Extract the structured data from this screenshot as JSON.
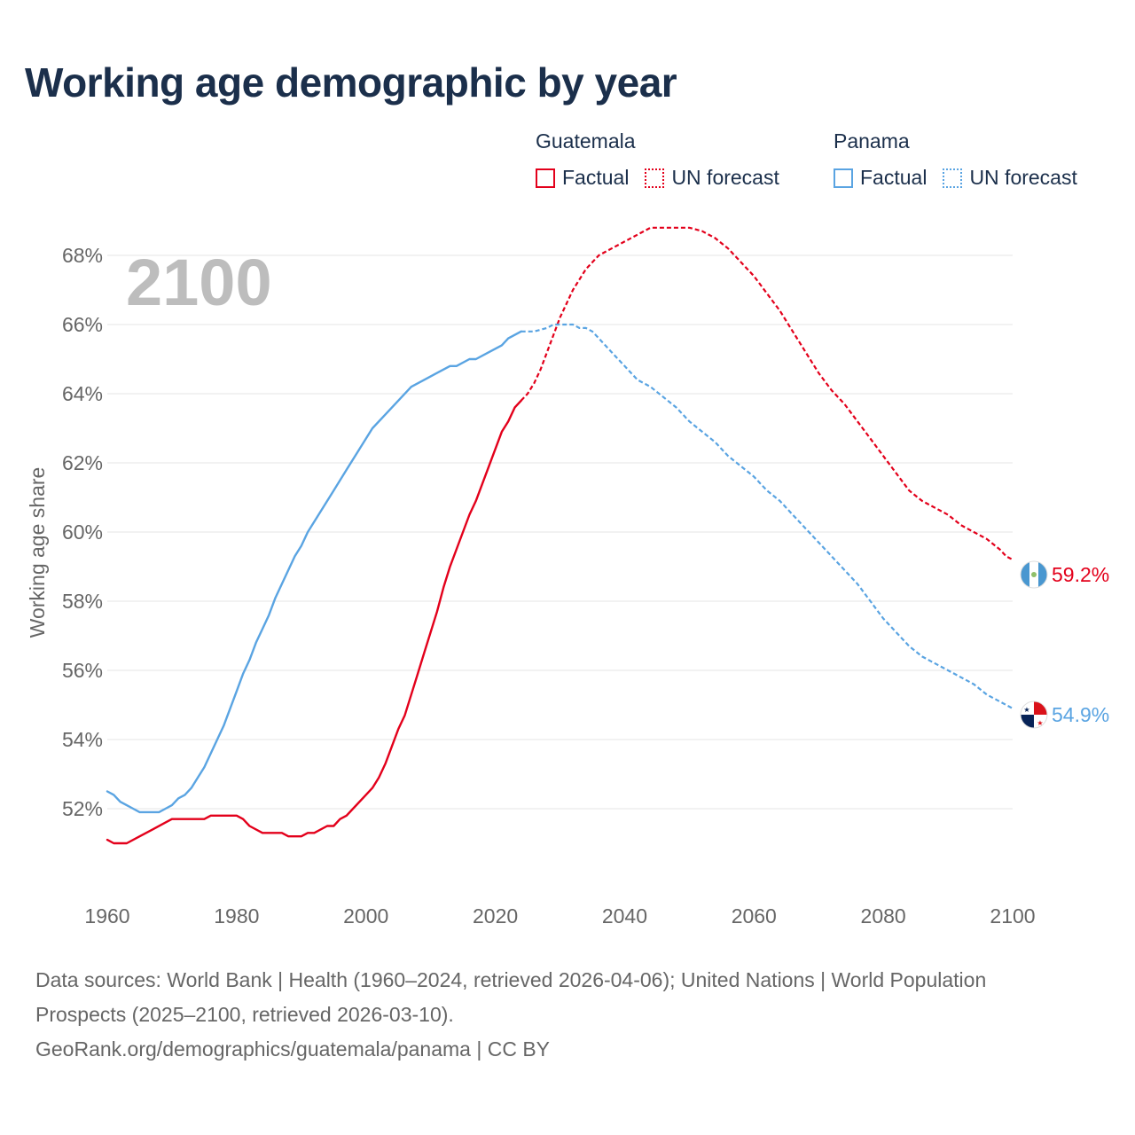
{
  "title": "Working age demographic by year",
  "year_badge": "2100",
  "legend": [
    {
      "country": "Guatemala",
      "factual": "Factual",
      "forecast": "UN forecast",
      "color": "#e3001b"
    },
    {
      "country": "Panama",
      "factual": "Factual",
      "forecast": "UN forecast",
      "color": "#5aa4e2"
    }
  ],
  "footer": {
    "sources": "Data sources: World Bank | Health (1960–2024, retrieved 2026-04-06); United Nations | World Population Prospects (2025–2100, retrieved 2026-03-10).",
    "credit": "GeoRank.org/demographics/guatemala/panama | CC BY"
  },
  "chart_data": {
    "type": "line",
    "title": "Working age demographic by year",
    "xlabel": "",
    "ylabel": "Working age share",
    "xlim": [
      1960,
      2100
    ],
    "ylim": [
      50,
      69
    ],
    "x_ticks": [
      1960,
      1980,
      2000,
      2020,
      2040,
      2060,
      2080,
      2100
    ],
    "x_tick_labels": [
      "1960",
      "1980",
      "2000",
      "2020",
      "2040",
      "2060",
      "2080",
      "2100"
    ],
    "y_ticks": [
      52,
      54,
      56,
      58,
      60,
      62,
      64,
      66,
      68
    ],
    "y_tick_labels": [
      "52%",
      "54%",
      "56%",
      "58%",
      "60%",
      "62%",
      "64%",
      "66%",
      "68%"
    ],
    "grid": true,
    "series": [
      {
        "name": "Guatemala",
        "color": "#e3001b",
        "end_label": "59.2%",
        "flag": "guatemala-flag",
        "factual": [
          [
            1960,
            51.1
          ],
          [
            1961,
            51.0
          ],
          [
            1963,
            51.0
          ],
          [
            1965,
            51.2
          ],
          [
            1967,
            51.4
          ],
          [
            1969,
            51.6
          ],
          [
            1970,
            51.7
          ],
          [
            1972,
            51.7
          ],
          [
            1975,
            51.7
          ],
          [
            1976,
            51.8
          ],
          [
            1979,
            51.8
          ],
          [
            1980,
            51.8
          ],
          [
            1981,
            51.7
          ],
          [
            1982,
            51.5
          ],
          [
            1984,
            51.3
          ],
          [
            1987,
            51.3
          ],
          [
            1988,
            51.2
          ],
          [
            1990,
            51.2
          ],
          [
            1991,
            51.3
          ],
          [
            1992,
            51.3
          ],
          [
            1994,
            51.5
          ],
          [
            1995,
            51.5
          ],
          [
            1996,
            51.7
          ],
          [
            1997,
            51.8
          ],
          [
            1998,
            52.0
          ],
          [
            2000,
            52.4
          ],
          [
            2001,
            52.6
          ],
          [
            2002,
            52.9
          ],
          [
            2003,
            53.3
          ],
          [
            2004,
            53.8
          ],
          [
            2005,
            54.3
          ],
          [
            2006,
            54.7
          ],
          [
            2007,
            55.3
          ],
          [
            2008,
            55.9
          ],
          [
            2009,
            56.5
          ],
          [
            2010,
            57.1
          ],
          [
            2011,
            57.7
          ],
          [
            2012,
            58.4
          ],
          [
            2013,
            59.0
          ],
          [
            2014,
            59.5
          ],
          [
            2015,
            60.0
          ],
          [
            2016,
            60.5
          ],
          [
            2017,
            60.9
          ],
          [
            2018,
            61.4
          ],
          [
            2019,
            61.9
          ],
          [
            2020,
            62.4
          ],
          [
            2021,
            62.9
          ],
          [
            2022,
            63.2
          ],
          [
            2023,
            63.6
          ],
          [
            2024,
            63.8
          ]
        ],
        "forecast": [
          [
            2024,
            63.8
          ],
          [
            2025,
            64.0
          ],
          [
            2026,
            64.3
          ],
          [
            2027,
            64.7
          ],
          [
            2028,
            65.2
          ],
          [
            2029,
            65.7
          ],
          [
            2030,
            66.2
          ],
          [
            2031,
            66.6
          ],
          [
            2032,
            67.0
          ],
          [
            2033,
            67.3
          ],
          [
            2034,
            67.6
          ],
          [
            2035,
            67.8
          ],
          [
            2036,
            68.0
          ],
          [
            2038,
            68.2
          ],
          [
            2040,
            68.4
          ],
          [
            2042,
            68.6
          ],
          [
            2044,
            68.8
          ],
          [
            2046,
            68.8
          ],
          [
            2048,
            68.8
          ],
          [
            2050,
            68.8
          ],
          [
            2052,
            68.7
          ],
          [
            2054,
            68.5
          ],
          [
            2056,
            68.2
          ],
          [
            2058,
            67.8
          ],
          [
            2060,
            67.4
          ],
          [
            2062,
            66.9
          ],
          [
            2064,
            66.4
          ],
          [
            2066,
            65.8
          ],
          [
            2068,
            65.2
          ],
          [
            2070,
            64.6
          ],
          [
            2072,
            64.1
          ],
          [
            2074,
            63.7
          ],
          [
            2076,
            63.2
          ],
          [
            2078,
            62.7
          ],
          [
            2080,
            62.2
          ],
          [
            2082,
            61.7
          ],
          [
            2084,
            61.2
          ],
          [
            2086,
            60.9
          ],
          [
            2088,
            60.7
          ],
          [
            2090,
            60.5
          ],
          [
            2092,
            60.2
          ],
          [
            2094,
            60.0
          ],
          [
            2096,
            59.8
          ],
          [
            2098,
            59.5
          ],
          [
            2099,
            59.3
          ],
          [
            2100,
            59.2
          ]
        ]
      },
      {
        "name": "Panama",
        "color": "#5aa4e2",
        "end_label": "54.9%",
        "flag": "panama-flag",
        "factual": [
          [
            1960,
            52.5
          ],
          [
            1961,
            52.4
          ],
          [
            1962,
            52.2
          ],
          [
            1963,
            52.1
          ],
          [
            1964,
            52.0
          ],
          [
            1965,
            51.9
          ],
          [
            1967,
            51.9
          ],
          [
            1968,
            51.9
          ],
          [
            1969,
            52.0
          ],
          [
            1970,
            52.1
          ],
          [
            1971,
            52.3
          ],
          [
            1972,
            52.4
          ],
          [
            1973,
            52.6
          ],
          [
            1974,
            52.9
          ],
          [
            1975,
            53.2
          ],
          [
            1976,
            53.6
          ],
          [
            1977,
            54.0
          ],
          [
            1978,
            54.4
          ],
          [
            1979,
            54.9
          ],
          [
            1980,
            55.4
          ],
          [
            1981,
            55.9
          ],
          [
            1982,
            56.3
          ],
          [
            1983,
            56.8
          ],
          [
            1984,
            57.2
          ],
          [
            1985,
            57.6
          ],
          [
            1986,
            58.1
          ],
          [
            1987,
            58.5
          ],
          [
            1988,
            58.9
          ],
          [
            1989,
            59.3
          ],
          [
            1990,
            59.6
          ],
          [
            1991,
            60.0
          ],
          [
            1993,
            60.6
          ],
          [
            1995,
            61.2
          ],
          [
            1997,
            61.8
          ],
          [
            1999,
            62.4
          ],
          [
            2001,
            63.0
          ],
          [
            2003,
            63.4
          ],
          [
            2005,
            63.8
          ],
          [
            2007,
            64.2
          ],
          [
            2009,
            64.4
          ],
          [
            2011,
            64.6
          ],
          [
            2013,
            64.8
          ],
          [
            2014,
            64.8
          ],
          [
            2016,
            65.0
          ],
          [
            2017,
            65.0
          ],
          [
            2019,
            65.2
          ],
          [
            2021,
            65.4
          ],
          [
            2022,
            65.6
          ],
          [
            2024,
            65.8
          ]
        ],
        "forecast": [
          [
            2024,
            65.8
          ],
          [
            2026,
            65.8
          ],
          [
            2028,
            65.9
          ],
          [
            2029,
            66.0
          ],
          [
            2030,
            66.0
          ],
          [
            2032,
            66.0
          ],
          [
            2033,
            65.9
          ],
          [
            2034,
            65.9
          ],
          [
            2035,
            65.8
          ],
          [
            2036,
            65.6
          ],
          [
            2038,
            65.2
          ],
          [
            2040,
            64.8
          ],
          [
            2042,
            64.4
          ],
          [
            2044,
            64.2
          ],
          [
            2046,
            63.9
          ],
          [
            2048,
            63.6
          ],
          [
            2050,
            63.2
          ],
          [
            2052,
            62.9
          ],
          [
            2054,
            62.6
          ],
          [
            2056,
            62.2
          ],
          [
            2058,
            61.9
          ],
          [
            2060,
            61.6
          ],
          [
            2062,
            61.2
          ],
          [
            2064,
            60.9
          ],
          [
            2066,
            60.5
          ],
          [
            2068,
            60.1
          ],
          [
            2070,
            59.7
          ],
          [
            2072,
            59.3
          ],
          [
            2074,
            58.9
          ],
          [
            2076,
            58.5
          ],
          [
            2078,
            58.0
          ],
          [
            2080,
            57.5
          ],
          [
            2082,
            57.1
          ],
          [
            2084,
            56.7
          ],
          [
            2086,
            56.4
          ],
          [
            2088,
            56.2
          ],
          [
            2090,
            56.0
          ],
          [
            2092,
            55.8
          ],
          [
            2094,
            55.6
          ],
          [
            2096,
            55.3
          ],
          [
            2098,
            55.1
          ],
          [
            2099,
            55.0
          ],
          [
            2100,
            54.9
          ]
        ]
      }
    ]
  }
}
